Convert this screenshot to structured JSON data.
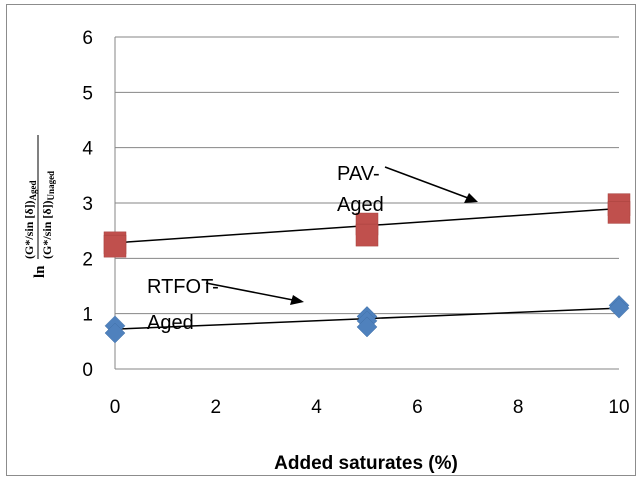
{
  "chart_data": {
    "type": "scatter",
    "xlabel": "Added saturates (%)",
    "ylabel": {
      "prefix": "ln",
      "numerator": "(G*/sin [δ])",
      "numerator_sub": "Aged",
      "denominator": "(G*/sin [δ])",
      "denominator_sub": "Unaged"
    },
    "xlim": [
      0,
      10
    ],
    "ylim": [
      0,
      6
    ],
    "x_ticks": [
      "0",
      "2",
      "4",
      "6",
      "8",
      "10"
    ],
    "y_ticks": [
      "0",
      "1",
      "2",
      "3",
      "4",
      "5",
      "6"
    ],
    "grid": "horizontal",
    "series": [
      {
        "label_line1": "PAV-",
        "label_line2": "Aged",
        "marker": "square",
        "color": "#c0504d",
        "points": [
          [
            0,
            2.28
          ],
          [
            0,
            2.22
          ],
          [
            5,
            2.62
          ],
          [
            5,
            2.42
          ],
          [
            10,
            2.97
          ],
          [
            10,
            2.83
          ]
        ],
        "trendline": [
          [
            0,
            2.28
          ],
          [
            10,
            2.9
          ]
        ]
      },
      {
        "label_line1": "RTFOT-",
        "label_line2": "Aged",
        "marker": "diamond",
        "color": "#4f81bd",
        "points": [
          [
            0,
            0.78
          ],
          [
            0,
            0.65
          ],
          [
            5,
            0.95
          ],
          [
            5,
            0.87
          ],
          [
            5,
            0.76
          ],
          [
            10,
            1.15
          ],
          [
            10,
            1.1
          ]
        ],
        "trendline": [
          [
            0,
            0.72
          ],
          [
            10,
            1.1
          ]
        ]
      }
    ]
  }
}
